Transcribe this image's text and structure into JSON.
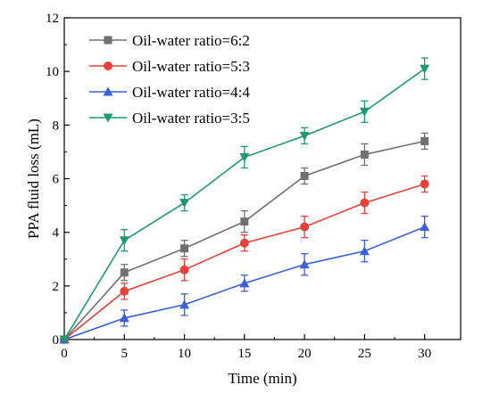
{
  "chart_data": {
    "type": "line",
    "xlabel": "Time (min)",
    "ylabel": "PPA fluid loss (mL)",
    "xlim": [
      0,
      33
    ],
    "ylim": [
      0,
      12
    ],
    "xticks": [
      0,
      5,
      10,
      15,
      20,
      25,
      30
    ],
    "yticks": [
      0,
      2,
      4,
      6,
      8,
      10,
      12
    ],
    "legend_position": "top-left",
    "x": [
      0,
      5,
      10,
      15,
      20,
      25,
      30
    ],
    "series": [
      {
        "name": "Oil-water ratio=6:2",
        "marker": "square",
        "color": "#707070",
        "values": [
          0,
          2.5,
          3.4,
          4.4,
          6.1,
          6.9,
          7.4
        ],
        "errors": [
          0,
          0.3,
          0.3,
          0.4,
          0.3,
          0.4,
          0.3
        ]
      },
      {
        "name": "Oil-water ratio=5:3",
        "marker": "circle",
        "color": "#e8403a",
        "values": [
          0,
          1.8,
          2.6,
          3.6,
          4.2,
          5.1,
          5.8
        ],
        "errors": [
          0,
          0.3,
          0.4,
          0.3,
          0.4,
          0.4,
          0.3
        ]
      },
      {
        "name": "Oil-water ratio=4:4",
        "marker": "triangle-up",
        "color": "#3b5fd6",
        "values": [
          0,
          0.8,
          1.3,
          2.1,
          2.8,
          3.3,
          4.2
        ],
        "errors": [
          0,
          0.3,
          0.4,
          0.3,
          0.4,
          0.4,
          0.4
        ]
      },
      {
        "name": "Oil-water ratio=3:5",
        "marker": "triangle-down",
        "color": "#1d9a6c",
        "values": [
          0,
          3.7,
          5.1,
          6.8,
          7.6,
          8.5,
          10.1
        ],
        "errors": [
          0,
          0.4,
          0.3,
          0.4,
          0.3,
          0.4,
          0.4
        ]
      }
    ]
  }
}
